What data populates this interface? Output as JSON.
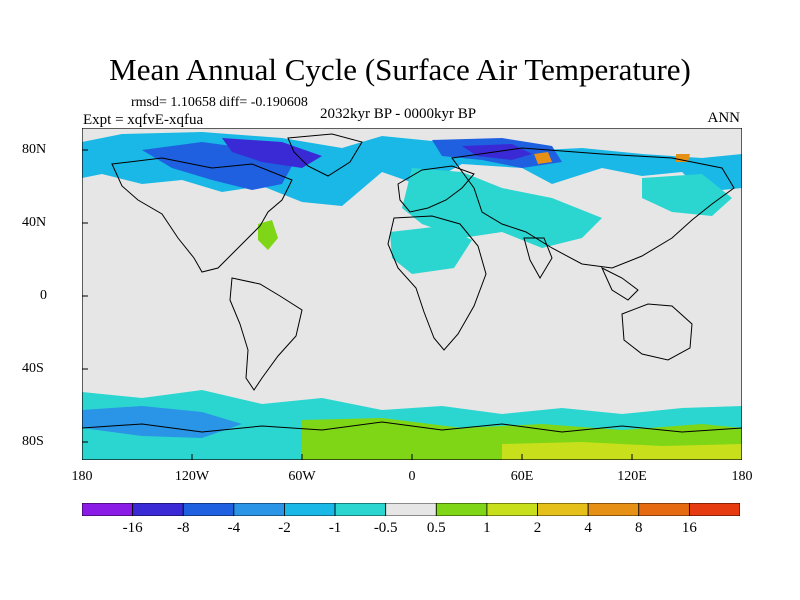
{
  "header": {
    "title": "Mean Annual Cycle (Surface Air Temperature)",
    "stats": "rmsd= 1.10658 diff= -0.190608",
    "period": "2032kyr BP - 0000kyr BP",
    "experiment": "Expt = xqfvE-xqfua",
    "season": "ANN"
  },
  "map": {
    "lat_labels": [
      "80N",
      "40N",
      "0",
      "40S",
      "80S"
    ],
    "lon_labels": [
      "180",
      "120W",
      "60W",
      "0",
      "60E",
      "120E",
      "180"
    ]
  },
  "legend": {
    "levels": [
      "-16",
      "-8",
      "-4",
      "-2",
      "-1",
      "-0.5",
      "0.5",
      "1",
      "2",
      "4",
      "8",
      "16"
    ],
    "colors": [
      "#8a1ae6",
      "#3a2ad6",
      "#1e60e0",
      "#2a94e6",
      "#1ab8e6",
      "#2cd6d0",
      "#e6e6e6",
      "#7ed616",
      "#c8e01c",
      "#e6c01a",
      "#e69016",
      "#e66a10",
      "#e63a10"
    ]
  },
  "colors": {
    "ocean_neutral": "#e6e6e6",
    "coast": "#000000"
  }
}
